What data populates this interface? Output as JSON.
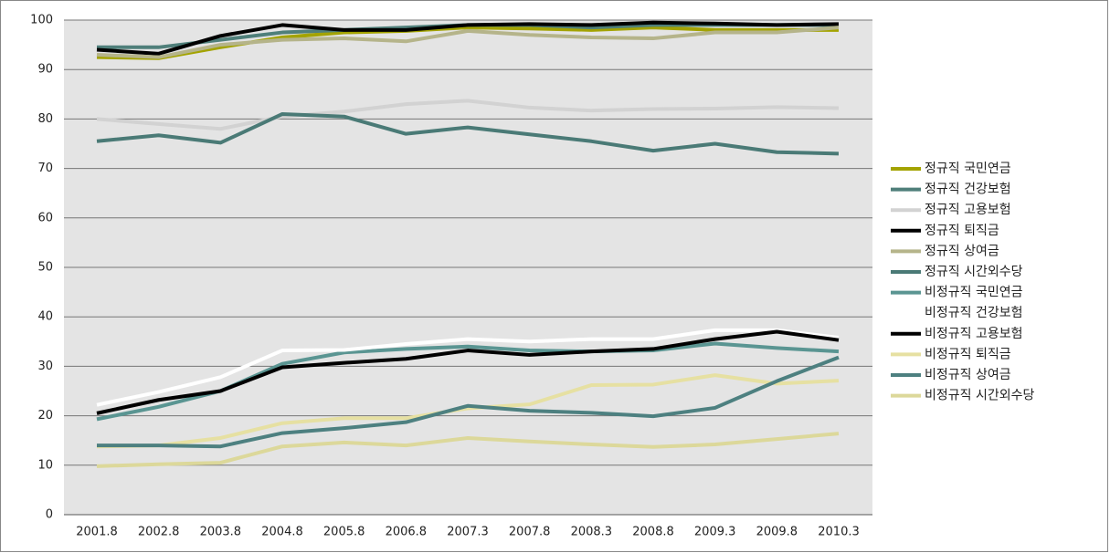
{
  "chart_data": {
    "type": "line",
    "categories": [
      "2001.8",
      "2002.8",
      "2003.8",
      "2004.8",
      "2005.8",
      "2006.8",
      "2007.3",
      "2007.8",
      "2008.3",
      "2008.8",
      "2009.3",
      "2009.8",
      "2010.3"
    ],
    "ylim": [
      0,
      100
    ],
    "yticks": [
      0,
      10,
      20,
      30,
      40,
      50,
      60,
      70,
      80,
      90,
      100
    ],
    "grid": true,
    "legend": "right",
    "series": [
      {
        "name": "정규직 국민연금",
        "color": "#a3a300",
        "values": [
          92.5,
          92.3,
          94.5,
          96.5,
          97.5,
          97.8,
          98.5,
          98.3,
          98,
          98.5,
          98,
          98,
          98
        ]
      },
      {
        "name": "정규직 건강보험",
        "color": "#4f7f7a",
        "values": [
          94.5,
          94.5,
          96,
          97.5,
          98,
          98.5,
          99,
          99,
          98.5,
          99,
          99,
          99,
          99
        ]
      },
      {
        "name": "정규직 고용보험",
        "color": "#d2d2d2",
        "values": [
          80,
          79,
          78,
          80.5,
          81.5,
          83,
          83.7,
          82.3,
          81.7,
          82,
          82.1,
          82.4,
          82.2
        ]
      },
      {
        "name": "정규직 퇴직금",
        "color": "#000000",
        "values": [
          94,
          93.2,
          96.8,
          99,
          98,
          98,
          99,
          99.2,
          99,
          99.5,
          99.3,
          99,
          99.2
        ]
      },
      {
        "name": "정규직 상여금",
        "color": "#b5b48a",
        "values": [
          93,
          92.5,
          95,
          96,
          96.3,
          95.7,
          97.8,
          97,
          96.5,
          96.3,
          97.5,
          97.5,
          98.5
        ]
      },
      {
        "name": "정규직 시간외수당",
        "color": "#4a7a76",
        "values": [
          75.5,
          76.7,
          75.2,
          81,
          80.5,
          77,
          78.3,
          76.9,
          75.5,
          73.6,
          75,
          73.3,
          73
        ]
      },
      {
        "name": "비정규직 국민연금",
        "color": "#5a9592",
        "values": [
          19.3,
          21.8,
          25,
          30.5,
          32.8,
          33.5,
          34,
          33.2,
          33,
          33.2,
          34.6,
          33.7,
          33
        ]
      },
      {
        "name": "비정규직 건강보험",
        "color": "#ffffff",
        "values": [
          22.2,
          24.8,
          27.8,
          33.2,
          33.3,
          34.5,
          35.5,
          35,
          35.5,
          35.5,
          37.3,
          37.3,
          35.8
        ]
      },
      {
        "name": "비정규직 고용보험",
        "color": "#000000",
        "values": [
          20.5,
          23.2,
          25,
          29.8,
          30.7,
          31.5,
          33.2,
          32.3,
          33,
          33.5,
          35.5,
          37,
          35.3
        ]
      },
      {
        "name": "비정규직 퇴직금",
        "color": "#e6e0a2",
        "values": [
          13.8,
          14,
          15.5,
          18.5,
          19.5,
          19.5,
          21.5,
          22.3,
          26.2,
          26.3,
          28.2,
          26.5,
          27.1
        ]
      },
      {
        "name": "비정규직 상여금",
        "color": "#4d8080",
        "values": [
          14,
          14,
          13.8,
          16.5,
          17.5,
          18.7,
          22,
          21,
          20.6,
          19.9,
          21.6,
          27,
          31.8
        ]
      },
      {
        "name": "비정규직 시간외수당",
        "color": "#dcd89a",
        "values": [
          9.8,
          10.2,
          10.5,
          13.8,
          14.6,
          14,
          15.5,
          14.8,
          14.2,
          13.7,
          14.2,
          15.3,
          16.4
        ]
      }
    ]
  }
}
